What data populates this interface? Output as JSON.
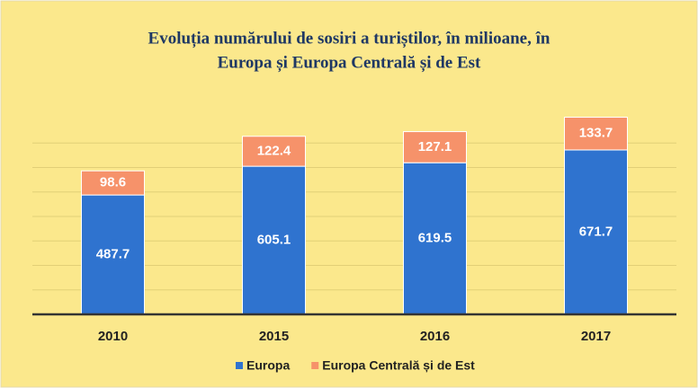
{
  "chart_data": {
    "type": "stacked_bar",
    "title": [
      "Evoluția numărului de sosiri a turiștilor, în milioane, în",
      "Europa și Europa Centrală și de Est"
    ],
    "categories": [
      "2010",
      "2015",
      "2016",
      "2017"
    ],
    "series": [
      {
        "name": "Europa",
        "color": "#2f73cf",
        "values": [
          487.7,
          605.1,
          619.5,
          671.7
        ]
      },
      {
        "name": "Europa Centrală și de Est",
        "color": "#f6926a",
        "values": [
          98.6,
          122.4,
          127.1,
          133.7
        ]
      }
    ],
    "ylim": [
      0,
      800
    ],
    "yticks": [
      0,
      100,
      200,
      300,
      400,
      500,
      600,
      700
    ],
    "grid": true,
    "legend": "bottom"
  }
}
